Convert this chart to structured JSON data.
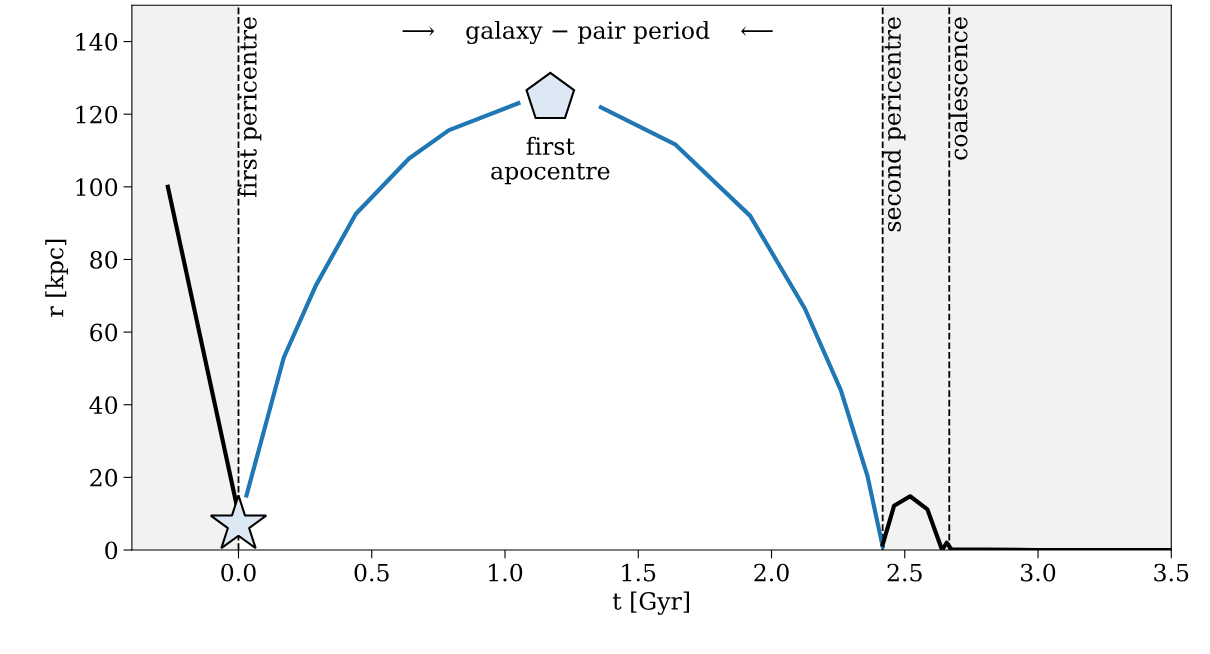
{
  "chart_data": {
    "type": "line",
    "xlabel": "t [Gyr]",
    "ylabel": "r [kpc]",
    "xlim": [
      -0.4,
      3.5
    ],
    "xticks": [
      {
        "value": 0,
        "label": "0.0"
      },
      0.5,
      {
        "value": 1,
        "label": "1.0"
      },
      1.5,
      {
        "value": 2,
        "label": "2.0"
      },
      2.5,
      {
        "value": 3,
        "label": "3.0"
      },
      3.5
    ],
    "ylim": [
      0,
      150
    ],
    "yticks": [
      0,
      20,
      40,
      60,
      80,
      100,
      120,
      140
    ],
    "grid": false,
    "legend": false,
    "series": [
      {
        "color": "#000000",
        "x": [
          -0.265,
          0.0
        ],
        "values": [
          100,
          10
        ]
      },
      {
        "color": "#1f77b4",
        "x": [
          0.03,
          0.17,
          0.29,
          0.44,
          0.64,
          0.79,
          1.05,
          1.17,
          1.36,
          1.64,
          1.92,
          2.125,
          2.26,
          2.36,
          2.417
        ],
        "values": [
          15,
          53,
          72.8,
          92.5,
          107.8,
          115.6,
          123,
          null,
          121.9,
          111.6,
          92,
          66.5,
          44,
          20.4,
          1
        ]
      },
      {
        "color": "#000000",
        "x": [
          2.417,
          2.46,
          2.52,
          2.585,
          2.64,
          2.657,
          2.675,
          3.0,
          3.5
        ],
        "values": [
          1.5,
          12.2,
          14.8,
          11.2,
          0,
          2,
          0.2,
          0,
          0
        ]
      },
      {
        "type": "scatter",
        "marker": "star",
        "color": "#dce9f5",
        "x": [
          0.0
        ],
        "values": [
          7
        ]
      },
      {
        "type": "scatter",
        "color": "#dce9f5",
        "x": [
          1.17
        ],
        "values": [
          124.5
        ]
      }
    ],
    "ref_lines": [
      {
        "axis": "x",
        "value": 0.0,
        "label": "first pericentre",
        "line_style": "dashed",
        "color": "#000000"
      },
      {
        "axis": "x",
        "value": 2.417,
        "label": "second pericentre",
        "line_style": "dashed",
        "color": "#000000"
      },
      {
        "axis": "x",
        "value": 2.667,
        "label": "coalescence",
        "line_style": "dashed",
        "color": "#000000"
      }
    ],
    "bands": [
      {
        "axis": "x",
        "from": -0.4,
        "to": 0.0,
        "color": "#f2f2f2"
      },
      {
        "axis": "x",
        "from": 2.417,
        "to": 3.5,
        "color": "#f2f2f2"
      }
    ],
    "annotations": [
      {
        "text": "first\napocentre",
        "x": 1.17,
        "y": 124.5
      },
      "⟶    galaxy − pair period    ⟵"
    ]
  }
}
